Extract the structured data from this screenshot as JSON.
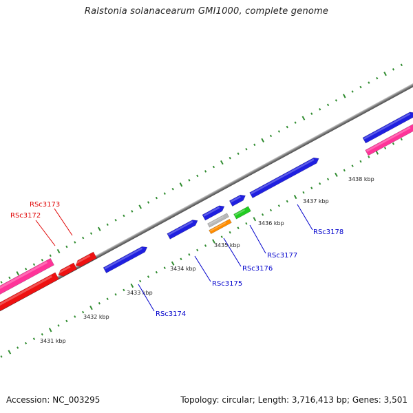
{
  "map": {
    "title": "Ralstonia solanacearum GMI1000, complete genome",
    "accession_label": "Accession: NC_003295",
    "summary_label": "Topology: circular; Length: 3,716,413 bp; Genes: 3,501"
  },
  "colors": {
    "backbone": "#808080",
    "forward_cds": "#1f1fe0",
    "reverse_cds": "#ee1111",
    "pink_cds": "#ff3399",
    "rna_green": "#22cc22",
    "rna_orange": "#ff8c00",
    "rna_grey": "#b8b8b8",
    "tick_green": "#2e8b2e",
    "label_blue": "#0000cc",
    "label_red": "#e00000"
  },
  "kbp_ticks": [
    "3431 kbp",
    "3432 kbp",
    "3433 kbp",
    "3434 kbp",
    "3435 kbp",
    "3436 kbp",
    "3437 kbp",
    "3438 kbp"
  ],
  "gene_labels": [
    {
      "name": "RSc3172",
      "strand": "reverse"
    },
    {
      "name": "RSc3173",
      "strand": "reverse"
    },
    {
      "name": "RSc3174",
      "strand": "forward"
    },
    {
      "name": "RSc3175",
      "strand": "forward"
    },
    {
      "name": "RSc3176",
      "strand": "forward"
    },
    {
      "name": "RSc3177",
      "strand": "forward"
    },
    {
      "name": "RSc3178",
      "strand": "forward"
    }
  ]
}
